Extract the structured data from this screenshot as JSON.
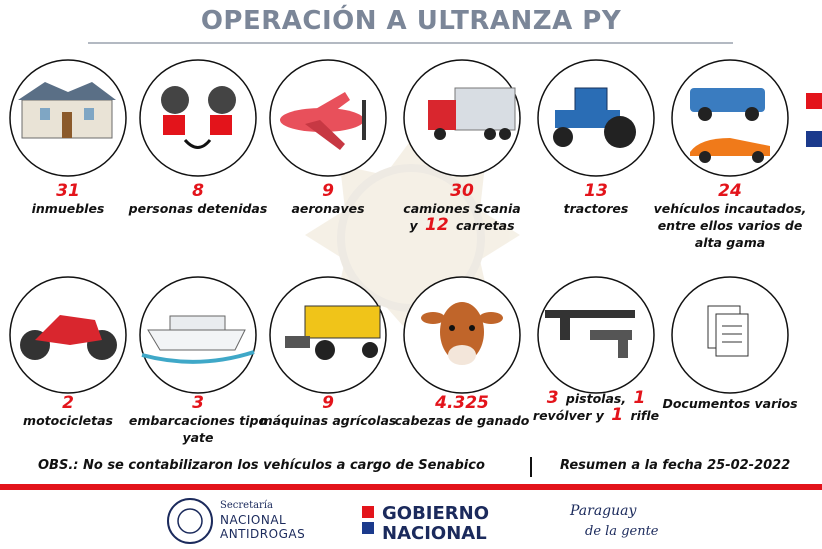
{
  "header": {
    "title": "OPERACIÓN A ULTRANZA PY"
  },
  "items": [
    {
      "lines": [
        [
          {
            "number": "31"
          }
        ],
        [
          {
            "text": "inmuebles"
          }
        ]
      ]
    },
    {
      "lines": [
        [
          {
            "number": "8"
          }
        ],
        [
          {
            "text": "personas detenidas"
          }
        ]
      ]
    },
    {
      "lines": [
        [
          {
            "number": "9"
          }
        ],
        [
          {
            "text": "aeronaves"
          }
        ]
      ]
    },
    {
      "lines": [
        [
          {
            "number": "30"
          }
        ],
        [
          {
            "text": "camiones Scania"
          }
        ],
        [
          {
            "text": "y"
          },
          {
            "number": "12"
          },
          {
            "text": "carretas"
          }
        ]
      ]
    },
    {
      "lines": [
        [
          {
            "number": "13"
          }
        ],
        [
          {
            "text": "tractores"
          }
        ]
      ]
    },
    {
      "lines": [
        [
          {
            "number": "24"
          }
        ],
        [
          {
            "text": "vehículos incautados, entre ellos varios de alta gama"
          }
        ]
      ]
    },
    {
      "lines": [
        [
          {
            "number": "2"
          }
        ],
        [
          {
            "text": "motocicletas"
          }
        ]
      ]
    },
    {
      "lines": [
        [
          {
            "number": "3"
          }
        ],
        [
          {
            "text": "embarcaciones tipo yate"
          }
        ]
      ]
    },
    {
      "lines": [
        [
          {
            "number": "9"
          }
        ],
        [
          {
            "text": "máquinas agrícolas"
          }
        ]
      ]
    },
    {
      "lines": [
        [
          {
            "number": "4.325"
          }
        ],
        [
          {
            "text": "cabezas de ganado"
          }
        ]
      ]
    },
    {
      "lines": [
        [
          {
            "number": "3"
          },
          {
            "text": "pistolas,"
          },
          {
            "number": "1"
          }
        ],
        [
          {
            "text": "revólver y"
          },
          {
            "number": "1"
          },
          {
            "text": "rifle"
          }
        ]
      ]
    },
    {
      "lines": [
        [
          {
            "text": "Documentos varios"
          }
        ]
      ]
    }
  ],
  "footer": {
    "note": "OBS.: No se contabilizaron los vehículos a cargo de Senabico",
    "date": "Resumen a la fecha 25-02-2022"
  },
  "logos": {
    "senad": [
      "Secretaría",
      "NACIONAL",
      "ANTIDROGAS"
    ],
    "gobierno": [
      "GOBIERNO",
      "NACIONAL"
    ],
    "paraguay": [
      "Paraguay",
      "de la gente"
    ]
  }
}
